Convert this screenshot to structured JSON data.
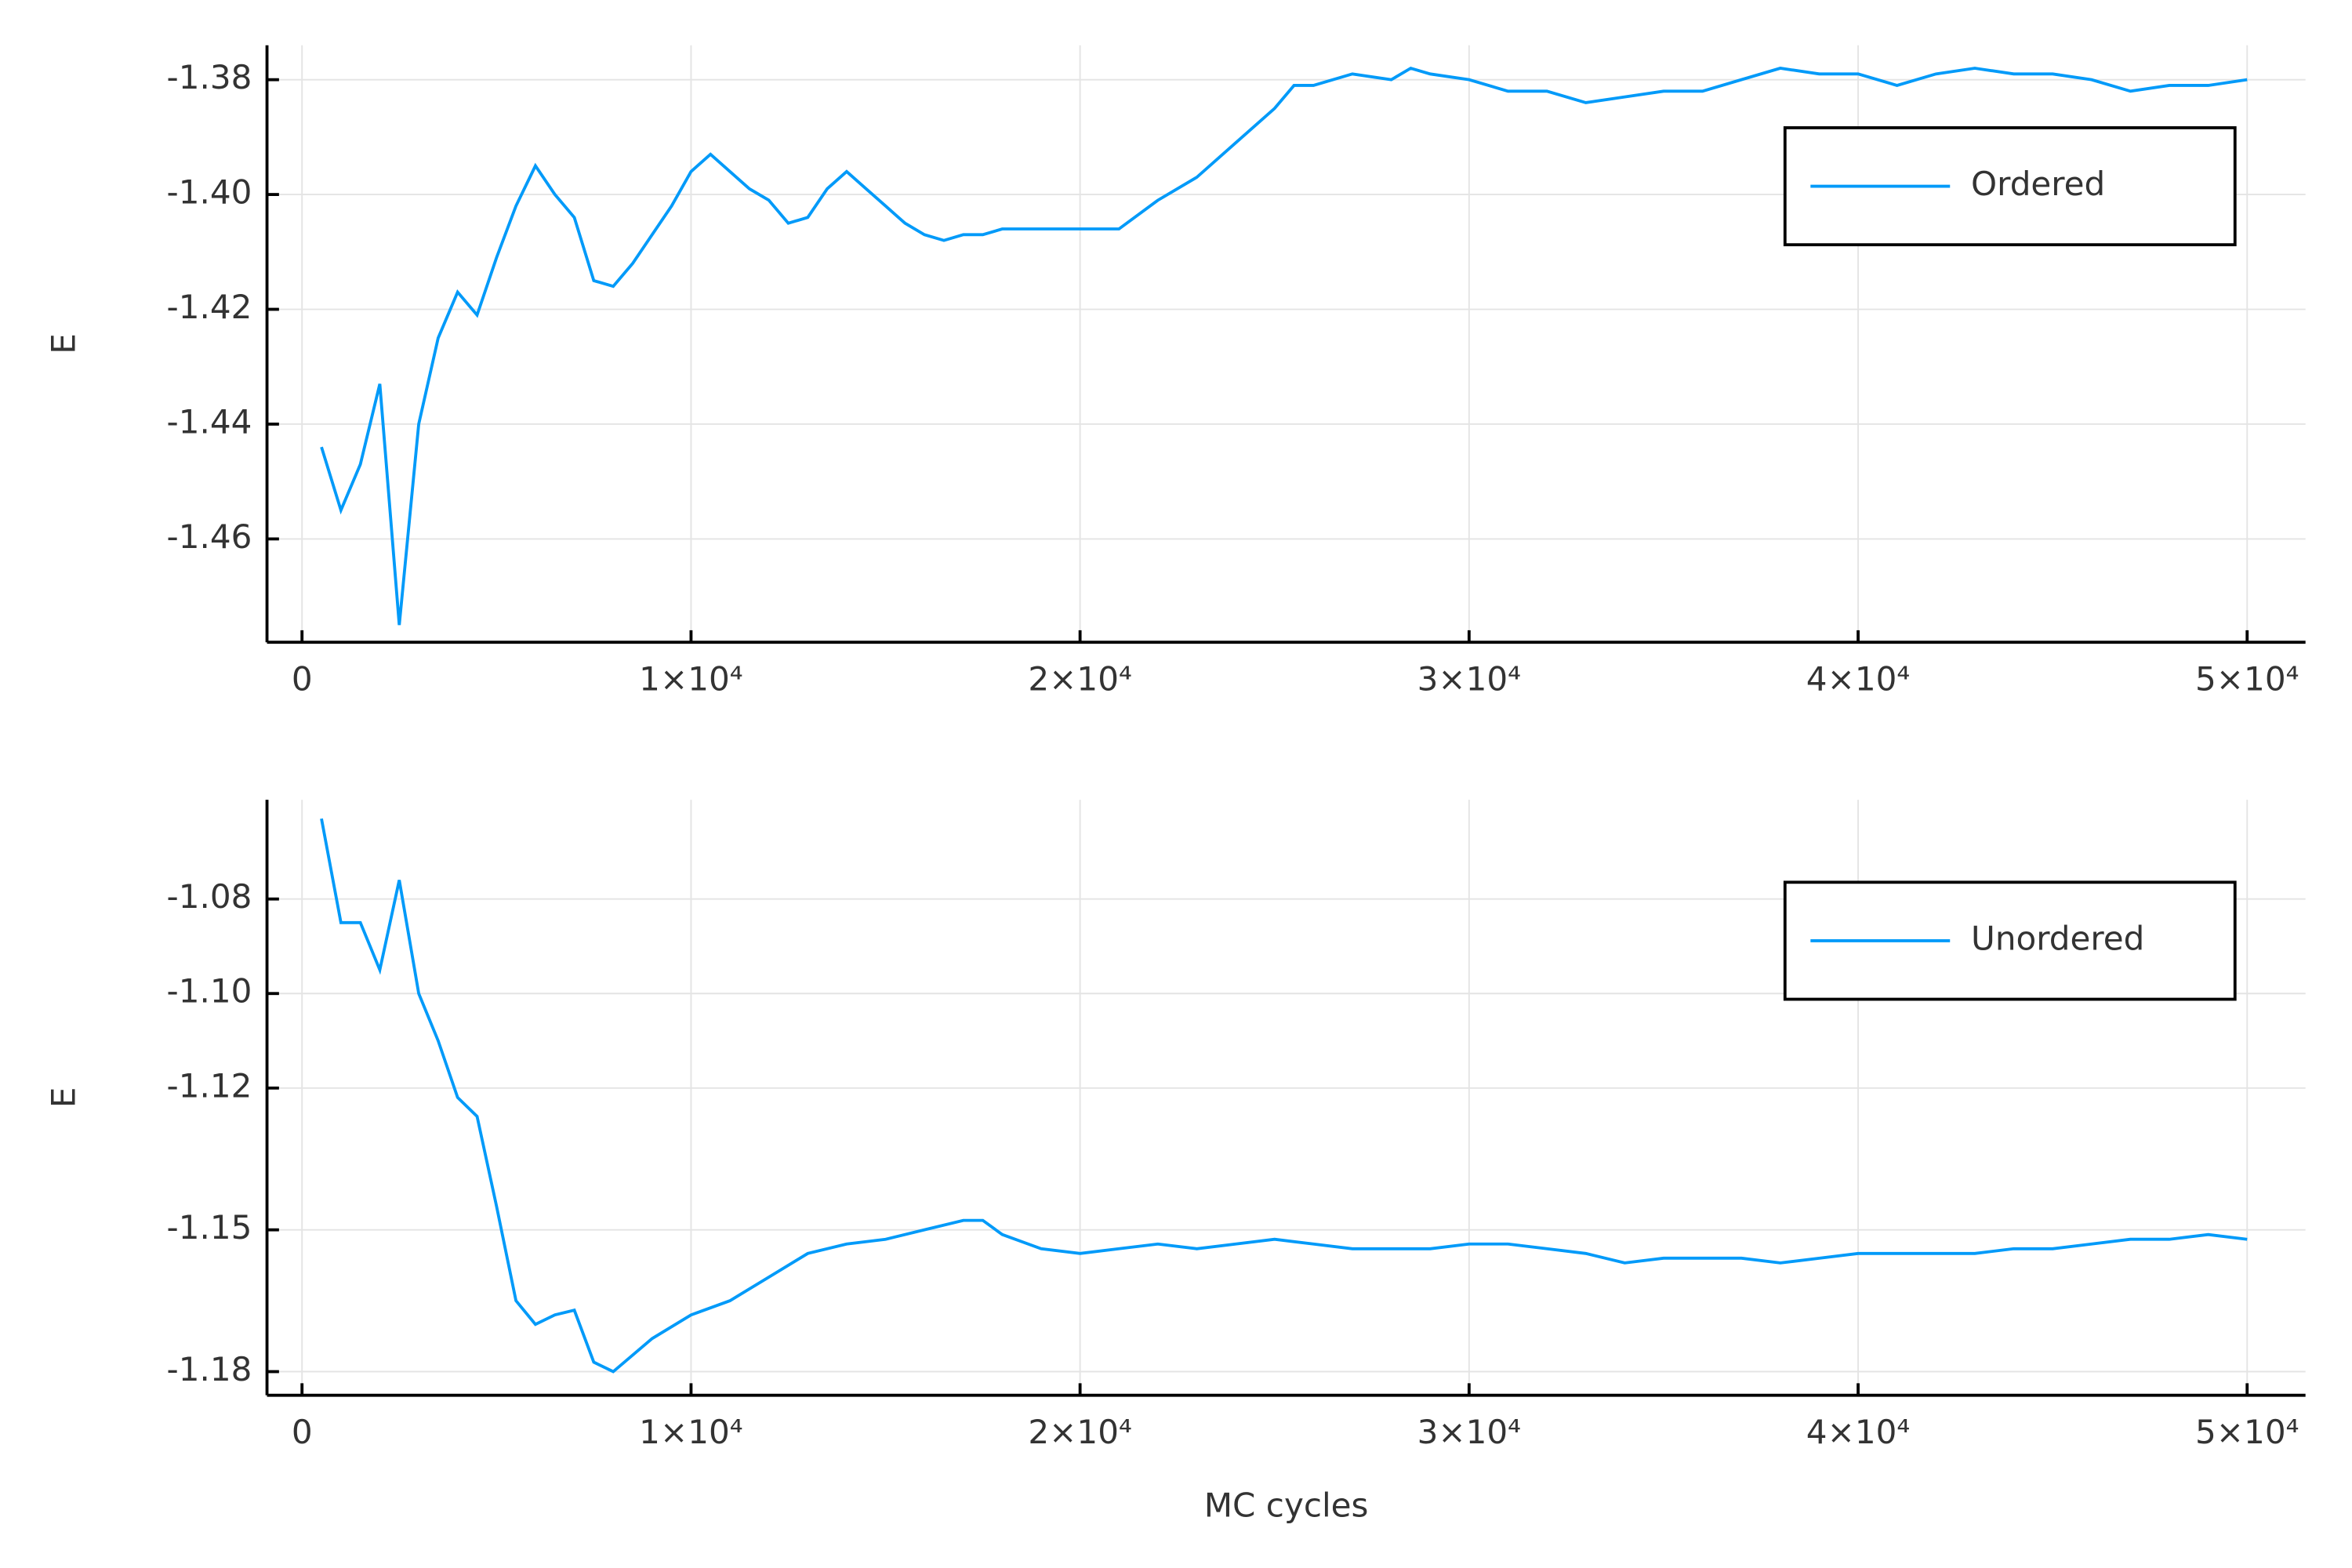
{
  "chart_data": [
    {
      "type": "line",
      "ylabel": "E",
      "legend": "top-right",
      "grid": true,
      "xlim": [
        -900,
        51500
      ],
      "ylim": [
        -1.478,
        -1.374
      ],
      "xticks": [
        0,
        {
          "value": 10000,
          "label": "1×10⁴"
        },
        {
          "value": 20000,
          "label": "2×10⁴"
        },
        {
          "value": 30000,
          "label": "3×10⁴"
        },
        {
          "value": 40000,
          "label": "4×10⁴"
        },
        {
          "value": 50000,
          "label": "5×10⁴"
        }
      ],
      "yticks": [
        -1.38,
        {
          "value": -1.4,
          "label": "-1.40"
        },
        -1.42,
        -1.44,
        -1.46
      ],
      "x": [
        500,
        1000,
        1500,
        2000,
        2500,
        3000,
        3500,
        4000,
        4500,
        5000,
        5500,
        6000,
        6500,
        7000,
        7500,
        8000,
        8500,
        9000,
        9500,
        10000,
        10500,
        11000,
        11500,
        12000,
        12500,
        13000,
        13500,
        14000,
        14500,
        15000,
        15500,
        16000,
        16500,
        17000,
        17500,
        18000,
        19000,
        20000,
        21000,
        22000,
        23000,
        24000,
        25000,
        25500,
        26000,
        27000,
        28000,
        28500,
        29000,
        30000,
        31000,
        32000,
        33000,
        34000,
        35000,
        36000,
        37000,
        38000,
        39000,
        40000,
        41000,
        42000,
        43000,
        44000,
        45000,
        46000,
        47000,
        48000,
        49000,
        50000
      ],
      "series": [
        {
          "name": "Ordered",
          "color": "#009af9",
          "values": [
            -1.444,
            -1.455,
            -1.447,
            -1.433,
            -1.475,
            -1.44,
            -1.425,
            -1.417,
            -1.421,
            -1.411,
            -1.402,
            -1.395,
            -1.4,
            -1.404,
            -1.415,
            -1.416,
            -1.412,
            -1.407,
            -1.402,
            -1.396,
            -1.393,
            -1.396,
            -1.399,
            -1.401,
            -1.405,
            -1.404,
            -1.399,
            -1.396,
            -1.399,
            -1.402,
            -1.405,
            -1.407,
            -1.408,
            -1.407,
            -1.407,
            -1.406,
            -1.406,
            -1.406,
            -1.406,
            -1.401,
            -1.397,
            -1.391,
            -1.385,
            -1.381,
            -1.381,
            -1.379,
            -1.38,
            -1.378,
            -1.379,
            -1.38,
            -1.382,
            -1.382,
            -1.384,
            -1.383,
            -1.382,
            -1.382,
            -1.38,
            -1.378,
            -1.379,
            -1.379,
            -1.381,
            -1.379,
            -1.378,
            -1.379,
            -1.379,
            -1.38,
            -1.382,
            -1.381,
            -1.381,
            -1.38
          ]
        }
      ]
    },
    {
      "type": "line",
      "xlabel": "MC cycles",
      "ylabel": "E",
      "legend": "top-right",
      "grid": true,
      "xlim": [
        -900,
        51500
      ],
      "ylim": [
        -1.185,
        -1.059
      ],
      "xticks": [
        0,
        {
          "value": 10000,
          "label": "1×10⁴"
        },
        {
          "value": 20000,
          "label": "2×10⁴"
        },
        {
          "value": 30000,
          "label": "3×10⁴"
        },
        {
          "value": 40000,
          "label": "4×10⁴"
        },
        {
          "value": 50000,
          "label": "5×10⁴"
        }
      ],
      "yticks": [
        -1.08,
        {
          "value": -1.1,
          "label": "-1.10"
        },
        -1.12,
        -1.15,
        -1.18
      ],
      "x": [
        500,
        1000,
        1500,
        2000,
        2500,
        3000,
        3500,
        4000,
        4500,
        5000,
        5500,
        6000,
        6500,
        7000,
        7500,
        8000,
        9000,
        10000,
        11000,
        12000,
        13000,
        14000,
        15000,
        16000,
        17000,
        17500,
        18000,
        19000,
        20000,
        21000,
        22000,
        23000,
        24000,
        25000,
        26000,
        27000,
        28000,
        29000,
        30000,
        31000,
        32000,
        33000,
        34000,
        35000,
        36000,
        37000,
        38000,
        39000,
        40000,
        41000,
        42000,
        43000,
        44000,
        45000,
        46000,
        47000,
        48000,
        49000,
        50000
      ],
      "series": [
        {
          "name": "Unordered",
          "color": "#009af9",
          "values": [
            -1.063,
            -1.085,
            -1.085,
            -1.095,
            -1.076,
            -1.1,
            -1.11,
            -1.122,
            -1.126,
            -1.145,
            -1.165,
            -1.17,
            -1.168,
            -1.167,
            -1.178,
            -1.18,
            -1.173,
            -1.168,
            -1.165,
            -1.16,
            -1.155,
            -1.153,
            -1.152,
            -1.15,
            -1.148,
            -1.148,
            -1.151,
            -1.154,
            -1.155,
            -1.154,
            -1.153,
            -1.154,
            -1.153,
            -1.152,
            -1.153,
            -1.154,
            -1.154,
            -1.154,
            -1.153,
            -1.153,
            -1.154,
            -1.155,
            -1.157,
            -1.156,
            -1.156,
            -1.156,
            -1.157,
            -1.156,
            -1.155,
            -1.155,
            -1.155,
            -1.155,
            -1.154,
            -1.154,
            -1.153,
            -1.152,
            -1.152,
            -1.151,
            -1.152
          ]
        }
      ]
    }
  ]
}
